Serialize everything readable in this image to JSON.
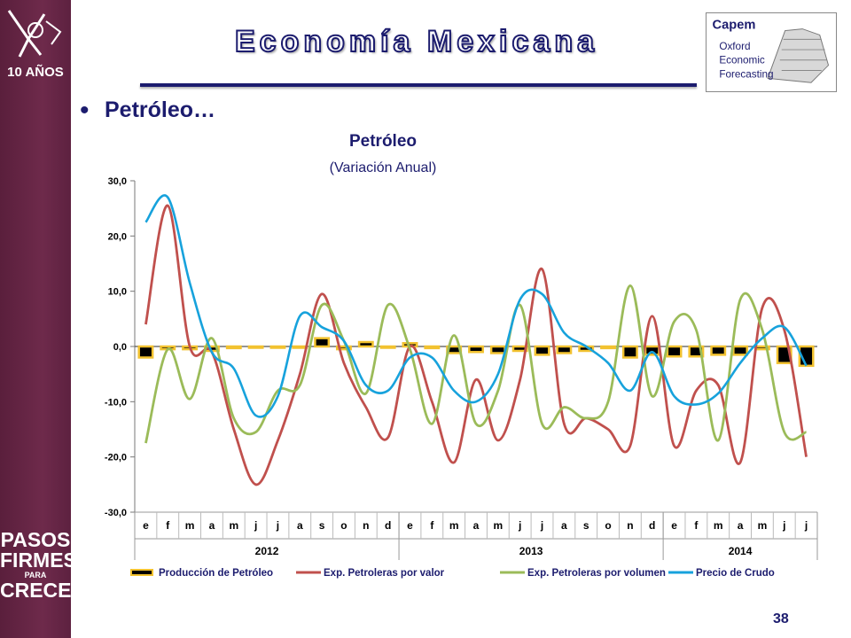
{
  "slide": {
    "title": "Economía Mexicana",
    "bullet_text": "Petróleo…",
    "page_number": "38",
    "side_slogan": [
      "PASOS",
      "FIRMES",
      "PARA",
      "CRECER"
    ],
    "side_logo_text": "10 AÑOS",
    "capem_logo_text": [
      "Capem",
      "Oxford",
      "Economic",
      "Forecasting"
    ]
  },
  "colors": {
    "sidebar": "#6b2747",
    "title_stroke": "#1c1c6e",
    "produccion_fill": "#000000",
    "produccion_border": "#f2c230",
    "exp_valor": "#c0504d",
    "exp_volumen": "#9bbb59",
    "precio_crudo": "#17a2dc"
  },
  "chart_data": {
    "type": "bar+line",
    "title": "Petróleo",
    "subtitle": "(Variación Anual)",
    "ylim": [
      -30,
      30
    ],
    "yticks": [
      "30,0",
      "20,0",
      "10,0",
      "0,0",
      "-10,0",
      "-20,0",
      "-30,0"
    ],
    "ytick_values": [
      30,
      20,
      10,
      0,
      -10,
      -20,
      -30
    ],
    "categories": [
      "e",
      "f",
      "m",
      "a",
      "m",
      "j",
      "j",
      "a",
      "s",
      "o",
      "n",
      "d",
      "e",
      "f",
      "m",
      "a",
      "m",
      "j",
      "j",
      "a",
      "s",
      "o",
      "n",
      "d",
      "e",
      "f",
      "m",
      "a",
      "m",
      "j",
      "j"
    ],
    "year_groups": [
      {
        "label": "2012",
        "count": 12
      },
      {
        "label": "2013",
        "count": 12
      },
      {
        "label": "2014",
        "count": 7
      }
    ],
    "legend": [
      "Producción de Petróleo",
      "Exp. Petroleras por valor",
      "Exp. Petroleras por volumen",
      "Precio de Crudo"
    ],
    "legend_position": "bottom",
    "series": [
      {
        "name": "Producción de Petróleo",
        "type": "bar",
        "values": [
          -2.0,
          -0.5,
          -0.5,
          -0.8,
          -0.3,
          -0.2,
          -0.2,
          0.0,
          1.5,
          -0.5,
          0.8,
          0.0,
          0.6,
          -0.3,
          -1.2,
          -1.0,
          -1.2,
          -0.8,
          -1.5,
          -1.2,
          -0.8,
          -0.3,
          -2.0,
          -1.5,
          -1.8,
          -1.8,
          -1.5,
          -1.5,
          -0.5,
          -3.0,
          -3.5
        ]
      },
      {
        "name": "Exp. Petroleras por valor",
        "type": "line",
        "values": [
          4.0,
          25.5,
          0.0,
          -1.0,
          -15.0,
          -25.0,
          -17.0,
          -5.0,
          9.5,
          -3.0,
          -11.0,
          -16.5,
          0.0,
          -10.0,
          -21.0,
          -6.0,
          -17.0,
          -6.0,
          14.0,
          -14.0,
          -13.0,
          -15.0,
          -18.0,
          5.5,
          -18.0,
          -8.0,
          -7.0,
          -21.0,
          7.0,
          3.0,
          -20.0
        ]
      },
      {
        "name": "Exp. Petroleras por volumen",
        "type": "line",
        "values": [
          -17.5,
          -0.5,
          -9.5,
          1.5,
          -13.0,
          -15.5,
          -8.0,
          -7.0,
          7.5,
          1.0,
          -8.5,
          7.5,
          -0.5,
          -14.0,
          2.0,
          -14.0,
          -8.0,
          7.5,
          -14.0,
          -11.0,
          -13.0,
          -10.0,
          11.0,
          -9.0,
          4.5,
          3.0,
          -17.0,
          8.5,
          3.0,
          -15.5,
          -15.5
        ]
      },
      {
        "name": "Precio de Crudo",
        "type": "line",
        "values": [
          22.5,
          27.0,
          11.5,
          -1.0,
          -4.0,
          -12.5,
          -9.0,
          5.5,
          3.5,
          1.0,
          -7.0,
          -8.0,
          -2.0,
          -2.0,
          -8.0,
          -10.0,
          -5.0,
          8.5,
          9.5,
          2.5,
          0.0,
          -3.0,
          -8.0,
          -1.0,
          -9.0,
          -10.5,
          -8.5,
          -3.0,
          1.5,
          3.5,
          -3.5
        ]
      }
    ]
  }
}
